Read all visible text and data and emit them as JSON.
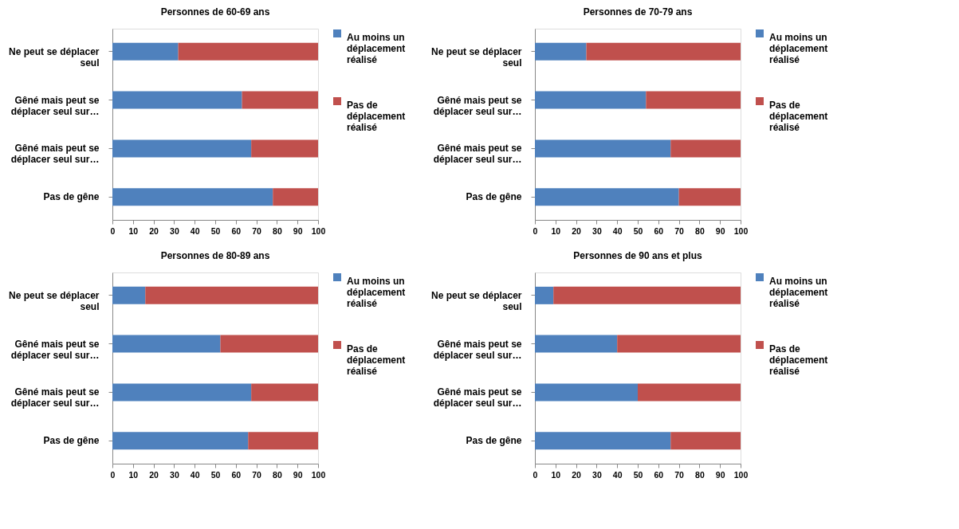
{
  "chart_data": [
    {
      "type": "bar",
      "orientation": "horizontal",
      "stacked": true,
      "title": "Personnes de 60-69 ans",
      "categories": [
        "Ne peut se déplacer seul",
        "Gêné mais peut se déplacer seul sur…",
        "Gêné mais peut se déplacer seul sur…",
        "Pas de gêne"
      ],
      "series": [
        {
          "name": "Au moins un déplacement réalisé",
          "color": "#4f81bd",
          "values": [
            32,
            63,
            67.5,
            78
          ]
        },
        {
          "name": "Pas de déplacement réalisé",
          "color": "#c0504d",
          "values": [
            68,
            37,
            32.5,
            22
          ]
        }
      ],
      "xlim": [
        0,
        100
      ],
      "xticks": [
        0,
        10,
        20,
        30,
        40,
        50,
        60,
        70,
        80,
        90,
        100
      ],
      "legend": "right",
      "grid": false
    },
    {
      "type": "bar",
      "orientation": "horizontal",
      "stacked": true,
      "title": "Personnes de 70-79 ans",
      "categories": [
        "Ne peut se déplacer seul",
        "Gêné mais peut se déplacer seul sur…",
        "Gêné mais peut se déplacer seul sur…",
        "Pas de gêne"
      ],
      "series": [
        {
          "name": "Au moins un déplacement réalisé",
          "color": "#4f81bd",
          "values": [
            25,
            54,
            66,
            70
          ]
        },
        {
          "name": "Pas de déplacement réalisé",
          "color": "#c0504d",
          "values": [
            75,
            46,
            34,
            30
          ]
        }
      ],
      "xlim": [
        0,
        100
      ],
      "xticks": [
        0,
        10,
        20,
        30,
        40,
        50,
        60,
        70,
        80,
        90,
        100
      ],
      "legend": "right",
      "grid": false
    },
    {
      "type": "bar",
      "orientation": "horizontal",
      "stacked": true,
      "title": "Personnes de 80-89 ans",
      "categories": [
        "Ne peut se déplacer seul",
        "Gêné mais peut se déplacer seul sur…",
        "Gêné mais peut se déplacer seul sur…",
        "Pas de gêne"
      ],
      "series": [
        {
          "name": "Au moins un déplacement réalisé",
          "color": "#4f81bd",
          "values": [
            16,
            52.5,
            67.5,
            66
          ]
        },
        {
          "name": "Pas de déplacement réalisé",
          "color": "#c0504d",
          "values": [
            84,
            47.5,
            32.5,
            34
          ]
        }
      ],
      "xlim": [
        0,
        100
      ],
      "xticks": [
        0,
        10,
        20,
        30,
        40,
        50,
        60,
        70,
        80,
        90,
        100
      ],
      "legend": "right",
      "grid": false
    },
    {
      "type": "bar",
      "orientation": "horizontal",
      "stacked": true,
      "title": "Personnes de 90 ans et plus",
      "categories": [
        "Ne peut se déplacer seul",
        "Gêné mais peut se déplacer seul sur…",
        "Gêné mais peut se déplacer seul sur…",
        "Pas de gêne"
      ],
      "series": [
        {
          "name": "Au moins un déplacement réalisé",
          "color": "#4f81bd",
          "values": [
            9,
            40,
            50,
            66
          ]
        },
        {
          "name": "Pas de déplacement réalisé",
          "color": "#c0504d",
          "values": [
            91,
            60,
            50,
            34
          ]
        }
      ],
      "xlim": [
        0,
        100
      ],
      "xticks": [
        0,
        10,
        20,
        30,
        40,
        50,
        60,
        70,
        80,
        90,
        100
      ],
      "legend": "right",
      "grid": false
    }
  ]
}
